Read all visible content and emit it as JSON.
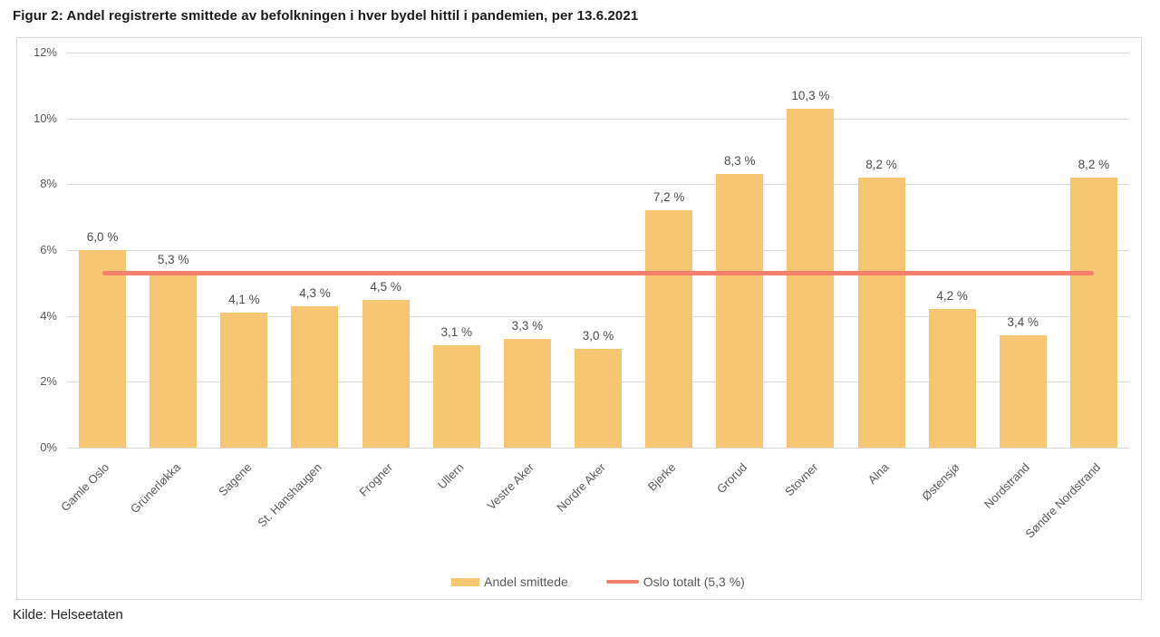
{
  "title": "Figur 2: Andel registrerte smittede av befolkningen i hver bydel hittil i pandemien, per 13.6.2021",
  "source": "Kilde: Helseetaten",
  "chart_data": {
    "type": "bar",
    "title": "Figur 2: Andel registrerte smittede av befolkningen i hver bydel hittil i pandemien, per 13.6.2021",
    "categories": [
      "Gamle Oslo",
      "Grünerløkka",
      "Sagene",
      "St. Hanshaugen",
      "Frogner",
      "Ullern",
      "Vestre Aker",
      "Nordre Aker",
      "Bjerke",
      "Grorud",
      "Stovner",
      "Alna",
      "Østensjø",
      "Nordstrand",
      "Søndre Nordstrand"
    ],
    "values": [
      6.0,
      5.3,
      4.1,
      4.3,
      4.5,
      3.1,
      3.3,
      3.0,
      7.2,
      8.3,
      10.3,
      8.2,
      4.2,
      3.4,
      8.2
    ],
    "value_labels": [
      "6,0 %",
      "5,3 %",
      "4,1 %",
      "4,3 %",
      "4,5 %",
      "3,1 %",
      "3,3 %",
      "3,0 %",
      "7,2 %",
      "8,3 %",
      "10,3 %",
      "8,2 %",
      "4,2 %",
      "3,4 %",
      "8,2 %"
    ],
    "reference_line": {
      "value": 5.3,
      "label": "Oslo totalt (5,3 %)"
    },
    "legend": [
      {
        "label": "Andel smittede",
        "type": "bar"
      },
      {
        "label": "Oslo totalt (5,3 %)",
        "type": "line"
      }
    ],
    "legend_position": "bottom-center",
    "xlabel": "",
    "ylabel": "",
    "ylim": [
      0,
      12
    ],
    "yticks": [
      "0%",
      "2%",
      "4%",
      "6%",
      "8%",
      "10%",
      "12%"
    ],
    "grid": true,
    "colors": {
      "bar": "#F7C672",
      "line": "#F5806D",
      "grid": "#DBDBDB",
      "border": "#D8D8D8",
      "axis_text": "#595959",
      "value_text": "#4D4D4D",
      "title_text": "#1A1A1A"
    }
  }
}
